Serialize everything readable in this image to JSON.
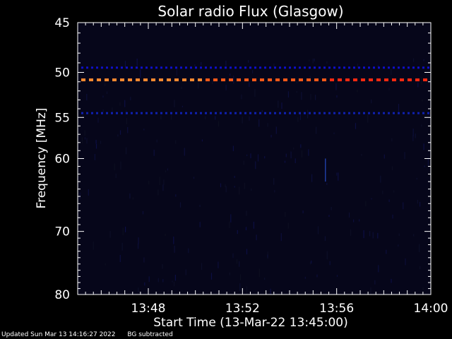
{
  "chart_data": {
    "type": "heatmap",
    "title": "Solar radio Flux (Glasgow)",
    "xlabel": "Start Time (13-Mar-22 13:45:00)",
    "ylabel": "Frequency [MHz]",
    "x_ticks": [
      "13:48",
      "13:52",
      "13:56",
      "14:00"
    ],
    "x_tick_minutes": [
      3,
      7,
      11,
      15
    ],
    "xlim_minutes": [
      0,
      15
    ],
    "y_ticks": [
      45,
      50,
      55,
      60,
      70,
      80
    ],
    "ylim": [
      45,
      80
    ],
    "y_scale": "log",
    "grid": false,
    "background_color": "#06061a",
    "bands": [
      {
        "freq_mhz": 49.5,
        "color": "#1010c8",
        "intensity": "medium"
      },
      {
        "freq_mhz": 50.8,
        "color": "#ff5010",
        "intensity": "high"
      },
      {
        "freq_mhz": 54.5,
        "color": "#1020b0",
        "intensity": "medium"
      }
    ],
    "vertical_features": [
      {
        "minute": 10.5,
        "freq_range_mhz": [
          60,
          63
        ],
        "color": "#1e3ca0"
      }
    ]
  },
  "footer": {
    "updated": "Updated Sun Mar 13 14:16:27 2022",
    "note": "BG subtracted"
  },
  "colors": {
    "axis": "#ffffff",
    "text": "#ffffff",
    "hot_band": "#ff5010",
    "cold_band": "#1010c8"
  }
}
